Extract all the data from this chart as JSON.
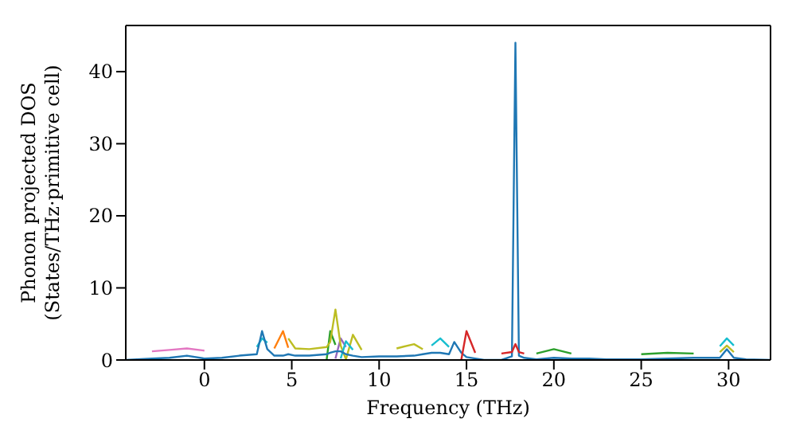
{
  "chart_data": {
    "type": "line",
    "xlabel": "Frequency (THz)",
    "ylabel": "Phonon projected DOS\n(States/THz·primitive cell)",
    "xlim": [
      -4.5,
      32.4
    ],
    "xticks": [
      0,
      5,
      10,
      15,
      20,
      25,
      30
    ],
    "ylim": [
      0,
      46.4
    ],
    "yticks": [
      0,
      10,
      20,
      30,
      40
    ],
    "x": [
      -4.5,
      -3,
      -2,
      -1,
      0,
      1,
      2,
      3,
      3.3,
      3.6,
      4,
      4.5,
      4.8,
      5.2,
      6,
      7,
      7.2,
      7.5,
      7.8,
      8.1,
      8.5,
      9,
      10,
      11,
      12,
      12.5,
      13,
      13.5,
      14,
      14.3,
      14.7,
      15,
      15.5,
      16,
      17,
      17.6,
      17.8,
      18,
      18.3,
      19,
      20,
      21,
      22,
      23,
      25,
      26.5,
      28,
      29.5,
      29.9,
      30.3,
      31,
      32.4
    ],
    "series": [
      {
        "color": "#e377c2",
        "values": [
          null,
          1.2,
          1.4,
          1.6,
          1.3,
          null,
          null,
          null,
          null,
          null,
          null,
          null,
          null,
          null,
          null,
          null,
          null,
          null,
          null,
          null,
          null,
          null,
          null,
          null,
          null,
          null,
          null,
          null,
          null,
          null,
          null,
          null,
          null,
          null,
          null,
          null,
          null,
          null,
          null,
          null,
          null,
          null,
          null,
          null,
          null,
          null,
          null,
          null,
          null,
          null,
          null,
          null
        ]
      },
      {
        "color": "#9467bd",
        "values": [
          null,
          null,
          null,
          null,
          null,
          null,
          null,
          null,
          null,
          null,
          null,
          null,
          null,
          null,
          null,
          null,
          null,
          0.2,
          3,
          1.8,
          null,
          null,
          null,
          null,
          null,
          null,
          null,
          null,
          null,
          null,
          null,
          null,
          null,
          null,
          null,
          null,
          null,
          null,
          null,
          null,
          null,
          null,
          null,
          null,
          null,
          null,
          null,
          null,
          null,
          null,
          null,
          null
        ]
      },
      {
        "color": "#2ca02c",
        "values": [
          null,
          null,
          null,
          null,
          null,
          null,
          null,
          null,
          null,
          null,
          null,
          null,
          null,
          null,
          null,
          0.1,
          4,
          2.1,
          null,
          null,
          null,
          null,
          null,
          null,
          null,
          null,
          null,
          null,
          null,
          null,
          null,
          null,
          null,
          null,
          null,
          null,
          null,
          null,
          null,
          0.9,
          1.5,
          0.9,
          null,
          null,
          0.8,
          1,
          0.9,
          null,
          null,
          null,
          null,
          null
        ]
      },
      {
        "color": "#ff7f0e",
        "values": [
          null,
          null,
          null,
          null,
          null,
          null,
          null,
          null,
          null,
          null,
          1.6,
          4,
          1.7,
          null,
          null,
          null,
          null,
          null,
          null,
          null,
          null,
          null,
          null,
          null,
          null,
          null,
          null,
          null,
          null,
          null,
          null,
          null,
          null,
          null,
          null,
          null,
          null,
          null,
          null,
          null,
          null,
          null,
          null,
          null,
          null,
          null,
          null,
          null,
          null,
          null,
          null,
          null
        ]
      },
      {
        "color": "#bcbd22",
        "values": [
          null,
          null,
          null,
          null,
          null,
          null,
          null,
          null,
          null,
          null,
          null,
          null,
          3,
          1.6,
          1.5,
          1.8,
          2.5,
          7,
          2,
          0.1,
          3.5,
          1.4,
          null,
          1.6,
          2.2,
          1.5,
          null,
          null,
          null,
          null,
          null,
          null,
          null,
          null,
          null,
          null,
          null,
          null,
          null,
          null,
          null,
          null,
          null,
          null,
          null,
          null,
          null,
          1.1,
          2,
          1.1,
          null,
          null
        ]
      },
      {
        "color": "#17becf",
        "values": [
          null,
          null,
          null,
          null,
          null,
          null,
          null,
          1.8,
          3,
          2.4,
          null,
          null,
          null,
          null,
          null,
          null,
          null,
          null,
          0.2,
          2.6,
          1.4,
          null,
          null,
          null,
          null,
          null,
          2,
          3,
          1.8,
          null,
          null,
          null,
          null,
          null,
          null,
          null,
          null,
          null,
          null,
          null,
          null,
          null,
          null,
          null,
          null,
          null,
          null,
          1.9,
          3,
          2,
          null,
          null
        ]
      },
      {
        "color": "#1f77b4",
        "values": [
          0,
          0.2,
          0.3,
          0.6,
          0.2,
          0.3,
          0.6,
          0.8,
          4,
          1.5,
          0.6,
          0.6,
          0.8,
          0.6,
          0.6,
          0.8,
          1,
          1.2,
          1.2,
          0.8,
          0.6,
          0.4,
          0.5,
          0.5,
          0.6,
          0.8,
          1,
          1,
          0.8,
          2.5,
          1,
          0.4,
          0.2,
          0,
          0,
          0.5,
          44,
          0.6,
          0.3,
          0.1,
          0.3,
          0.2,
          0.2,
          0.1,
          0.1,
          0.2,
          0.3,
          0.3,
          1.5,
          0.3,
          0.1,
          0
        ]
      },
      {
        "color": "#d62728",
        "values": [
          null,
          null,
          null,
          null,
          null,
          null,
          null,
          null,
          null,
          null,
          null,
          null,
          null,
          null,
          null,
          null,
          null,
          null,
          null,
          null,
          null,
          null,
          null,
          null,
          null,
          null,
          null,
          null,
          null,
          null,
          0,
          4,
          1,
          null,
          0.9,
          1.1,
          2.2,
          1.1,
          0.9,
          null,
          null,
          null,
          null,
          null,
          null,
          null,
          null,
          null,
          null,
          null,
          null,
          null
        ]
      }
    ]
  }
}
